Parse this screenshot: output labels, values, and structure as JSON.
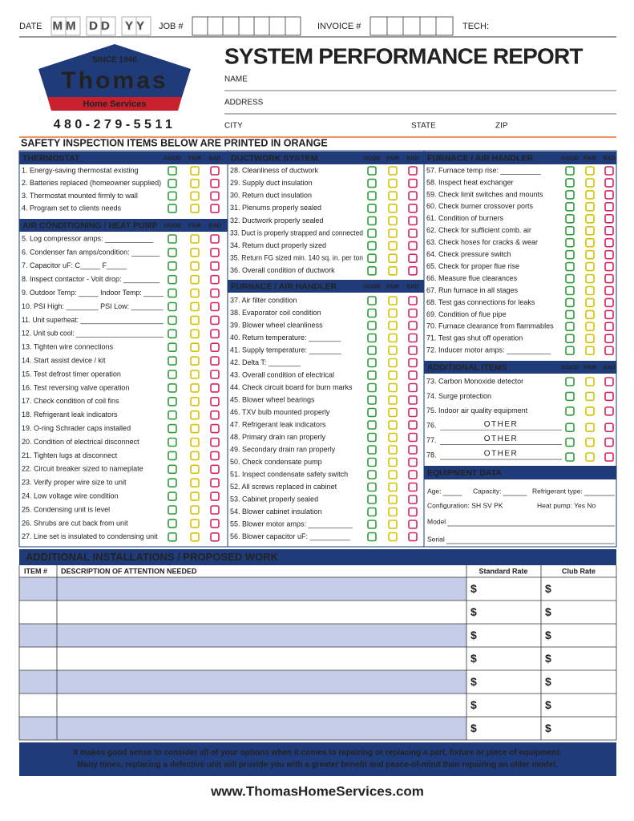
{
  "header": {
    "date_label": "DATE",
    "date_boxes": [
      "MM",
      "DD",
      "YY"
    ],
    "job_label": "JOB #",
    "invoice_label": "INVOICE #",
    "tech_label": "TECH:"
  },
  "logo": {
    "since": "SINCE 1946",
    "name": "Thomas",
    "sub": "Home Services",
    "phone": "480-279-5511"
  },
  "title": "SYSTEM PERFORMANCE REPORT",
  "fields": {
    "name": "NAME",
    "address": "ADDRESS",
    "city": "CITY",
    "state": "STATE",
    "zip": "ZIP"
  },
  "safety_banner": "SAFETY INSPECTION ITEMS BELOW ARE PRINTED IN ORANGE",
  "rating_labels": [
    "GOOD",
    "FAIR",
    "BAD"
  ],
  "sections": [
    {
      "title": "THERMOSTAT",
      "items": [
        {
          "text": "1. Energy-saving thermostat existing"
        },
        {
          "text": "2. Batteries replaced (homeowner supplied)"
        },
        {
          "text": "3. Thermostat mounted firmly to wall"
        },
        {
          "text": "4. Program set to clients needs"
        }
      ]
    },
    {
      "title": "AIR CONDITIONING / HEAT PUMP",
      "items": [
        {
          "text": "5. Log compressor amps: ____________",
          "safety": true
        },
        {
          "text": "6. Condenser fan amps/condition: _______",
          "safety": true
        },
        {
          "text": "7. Capacitor uF:  C_____  F_____",
          "safety": true
        },
        {
          "text": "8. Inspect contactor - Volt drop: _________",
          "safety": true
        },
        {
          "text": "9. Outdoor Temp: _____  Indoor Temp: _____"
        },
        {
          "text": "10. PSI High: ________  PSI Low: ________"
        },
        {
          "text": "11. Unit superheat: ______________________"
        },
        {
          "text": "12. Unit sub cool: _______________________"
        },
        {
          "text": "13. Tighten wire connections"
        },
        {
          "text": "14. Start assist device / kit",
          "safety": true
        },
        {
          "text": "15. Test defrost timer operation"
        },
        {
          "text": "16. Test reversing valve operation"
        },
        {
          "text": "17. Check condition of coil fins"
        },
        {
          "text": "18. Refrigerant leak indicators"
        },
        {
          "text": "19. O-ring Schrader caps installed"
        },
        {
          "text": "20. Condition of electrical disconnect",
          "safety": true
        },
        {
          "text": "21. Tighten lugs at disconnect",
          "safety": true
        },
        {
          "text": "22. Circuit breaker sized to nameplate",
          "safety": true
        },
        {
          "text": "23. Verify proper wire size to unit",
          "safety": true
        },
        {
          "text": "24. Low voltage wire condition"
        },
        {
          "text": "25. Condensing unit is level"
        },
        {
          "text": "26. Shrubs are cut back from unit"
        },
        {
          "text": "27. Line set is insulated to condensing unit"
        }
      ]
    },
    {
      "title": "DUCTWORK SYSTEM",
      "items": [
        {
          "text": "28. Cleanliness of ductwork"
        },
        {
          "text": "29. Supply duct insulation"
        },
        {
          "text": "30. Return duct insulation"
        },
        {
          "text": "31. Plenums properly sealed"
        },
        {
          "text": "32. Ductwork properly sealed"
        },
        {
          "text": "33. Duct is properly strapped and connected"
        },
        {
          "text": "34. Return duct properly sized"
        },
        {
          "text": "35. Return FG sized min. 140 sq. in. per ton"
        },
        {
          "text": "36. Overall condition of ductwork"
        }
      ]
    },
    {
      "title": "FURNACE / AIR HANDLER",
      "items": [
        {
          "text": "37. Air filter condition"
        },
        {
          "text": "38. Evaporator coil condition"
        },
        {
          "text": "39. Blower wheel cleanliness"
        },
        {
          "text": "40. Return temperature: ________"
        },
        {
          "text": "41. Supply temperature: ________"
        },
        {
          "text": "42. Delta T: ________"
        },
        {
          "text": "43. Overall condition of electrical",
          "safety": true
        },
        {
          "text": "44. Check circuit board for burn marks",
          "safety": true
        },
        {
          "text": "45. Blower wheel bearings"
        },
        {
          "text": "46. TXV bulb mounted properly"
        },
        {
          "text": "47. Refrigerant leak indicators"
        },
        {
          "text": "48. Primary drain ran properly"
        },
        {
          "text": "49. Secondary drain ran properly"
        },
        {
          "text": "50. Check condensate pump"
        },
        {
          "text": "51. Inspect condensate safety switch"
        },
        {
          "text": "52. All screws replaced in cabinet"
        },
        {
          "text": "53. Cabinet properly sealed"
        },
        {
          "text": "54. Blower cabinet insulation"
        },
        {
          "text": "55. Blower motor amps: ___________",
          "safety": true
        },
        {
          "text": "56. Blower capacitor uF: __________",
          "safety": true
        }
      ]
    },
    {
      "title": "FURNACE / AIR HANDLER",
      "items": [
        {
          "text": "57. Furnace temp rise: __________",
          "safety": true
        },
        {
          "text": "58. Inspect heat exchanger",
          "safety": true
        },
        {
          "text": "59. Check limit switches and mounts",
          "safety": true
        },
        {
          "text": "60. Check burner crossover ports",
          "safety": true
        },
        {
          "text": "61. Condition of burners"
        },
        {
          "text": "62. Check for sufficient comb. air",
          "safety": true
        },
        {
          "text": "63. Check hoses for cracks & wear"
        },
        {
          "text": "64. Check pressure switch"
        },
        {
          "text": "65. Check for proper flue rise"
        },
        {
          "text": "66. Measure flue clearances"
        },
        {
          "text": "67. Run furnace in all stages"
        },
        {
          "text": "68. Test gas connections for leaks",
          "safety": true
        },
        {
          "text": "69. Condition of flue pipe",
          "safety": true
        },
        {
          "text": "70. Furnace clearance from flammables",
          "safety": true
        },
        {
          "text": "71. Test gas shut off operation",
          "safety": true
        },
        {
          "text": "72. Inducer motor amps: ___________",
          "safety": true
        }
      ]
    },
    {
      "title": "ADDITIONAL ITEMS",
      "items": [
        {
          "text": "73. Carbon Monoxide detector",
          "safety": true
        },
        {
          "text": "74. Surge protection",
          "safety": true
        },
        {
          "text": "75. Indoor air quality equipment"
        },
        {
          "text": "76.",
          "placeholder": "OTHER"
        },
        {
          "text": "77.",
          "placeholder": "OTHER"
        },
        {
          "text": "78.",
          "placeholder": "OTHER"
        }
      ]
    }
  ],
  "equipment": {
    "title": "EQUIPMENT DATA",
    "fields": [
      "Age:",
      "Capacity:",
      "Refrigerant type:",
      "Configuration:  SH   SV   PK",
      "Heat pump:  Yes   No",
      "Model",
      "Serial"
    ]
  },
  "work_table": {
    "title": "ADDITIONAL INSTALLATIONS / PROPOSED WORK",
    "columns": [
      "ITEM #",
      "DESCRIPTION OF ATTENTION NEEDED",
      "Standard Rate",
      "Club Rate"
    ],
    "rows": [
      [
        "$",
        "$"
      ],
      [
        "$",
        "$"
      ],
      [
        "$",
        "$"
      ],
      [
        "$",
        "$"
      ],
      [
        "$",
        "$"
      ],
      [
        "$",
        "$"
      ],
      [
        "$",
        "$"
      ]
    ]
  },
  "footer": {
    "lines": [
      "It  makes good sense to consider all of your options when it comes to repairing or replacing a part, fixture or piece of equipment.",
      "Many times, replacing a defective unit will provide you with a greater benefit and peace-of-mind than repairing an older model."
    ],
    "website": "www.ThomasHomeServices.com"
  }
}
